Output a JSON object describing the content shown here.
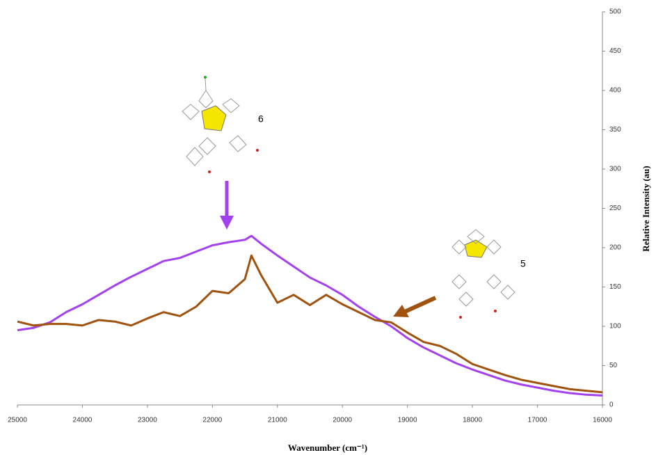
{
  "chart_data": {
    "type": "line",
    "x_label": "Wavenumber (cm⁻¹)",
    "y_label": "Relative Intensity (au)",
    "x": [
      25000,
      24750,
      24500,
      24250,
      24000,
      23750,
      23500,
      23250,
      23000,
      22750,
      22500,
      22250,
      22000,
      21750,
      21500,
      21400,
      21250,
      21000,
      20750,
      20500,
      20250,
      20000,
      19750,
      19500,
      19250,
      19000,
      18750,
      18500,
      18250,
      18000,
      17750,
      17500,
      17250,
      17000,
      16750,
      16500,
      16250,
      16000
    ],
    "series": [
      {
        "name": "6",
        "color": "#a341f0",
        "values": [
          95,
          98,
          105,
          118,
          128,
          140,
          152,
          163,
          173,
          183,
          187,
          195,
          203,
          207,
          210,
          215,
          205,
          190,
          176,
          162,
          152,
          140,
          125,
          112,
          100,
          85,
          73,
          63,
          53,
          45,
          38,
          31,
          26,
          22,
          18,
          15,
          13,
          12
        ]
      },
      {
        "name": "5",
        "color": "#a0520f",
        "values": [
          106,
          101,
          103,
          103,
          101,
          108,
          106,
          101,
          110,
          118,
          113,
          125,
          145,
          142,
          160,
          190,
          165,
          130,
          140,
          127,
          140,
          128,
          118,
          108,
          105,
          92,
          80,
          75,
          65,
          52,
          45,
          38,
          32,
          28,
          24,
          20,
          18,
          16
        ]
      }
    ],
    "xlim": [
      25000,
      16000
    ],
    "xticks": [
      25000,
      24000,
      23000,
      22000,
      21000,
      20000,
      19000,
      18000,
      17000,
      16000
    ],
    "ylim": [
      0,
      500
    ],
    "yticks": [
      0,
      50,
      100,
      150,
      200,
      250,
      300,
      350,
      400,
      450,
      500
    ],
    "y_axis_side": "right"
  }
}
